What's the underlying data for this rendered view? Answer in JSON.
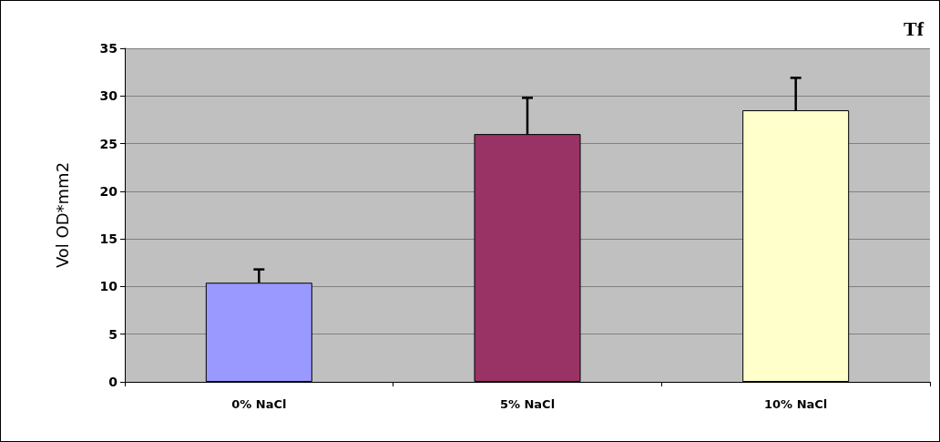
{
  "chart_data": {
    "type": "bar",
    "title": "Tf",
    "ylabel": "Vol OD*mm2",
    "categories": [
      "0% NaCl",
      "5% NaCl",
      "10% NaCl"
    ],
    "values": [
      10.4,
      26,
      28.5
    ],
    "colors": [
      "#9999ff",
      "#993366",
      "#ffffcc"
    ],
    "errors": [
      [
        10.4,
        11.8
      ],
      [
        26,
        29.8
      ],
      [
        28.5,
        31.9
      ]
    ],
    "ylim": [
      0,
      35
    ],
    "yticks": [
      0,
      5,
      10,
      15,
      20,
      25,
      30,
      35
    ],
    "grid": "y"
  }
}
